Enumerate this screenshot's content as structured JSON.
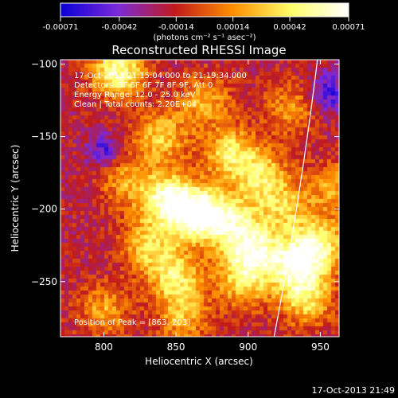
{
  "chart_data": {
    "type": "heatmap",
    "title": "Reconstructed RHESSI Image",
    "xlabel": "Heliocentric X (arcsec)",
    "ylabel": "Heliocentric Y (arcsec)",
    "xlim": [
      770,
      963
    ],
    "ylim": [
      -288,
      -97
    ],
    "x_ticks": [
      800,
      850,
      900,
      950
    ],
    "y_ticks": [
      -250,
      -200,
      -150,
      -100
    ],
    "x_tick_labels": [
      "800",
      "850",
      "900",
      "950"
    ],
    "y_tick_labels": [
      "-250",
      "-200",
      "-150",
      "-100"
    ],
    "colorbar": {
      "range": [
        -0.00071,
        0.00071
      ],
      "ticks": [
        -0.00071,
        -0.00042,
        -0.00014,
        0.00014,
        0.00042,
        0.00071
      ],
      "tick_labels": [
        "-0.00071",
        "-0.00042",
        "-0.00014",
        "0.00014",
        "0.00042",
        "0.00071"
      ],
      "units": "(photons cm⁻² s⁻¹ asec⁻²)",
      "colormap": "rainbow-to-hot",
      "colors": [
        "#0a00d8",
        "#7c2ad8",
        "#c21a1a",
        "#ff9000",
        "#ffff6a",
        "#ffffff"
      ]
    },
    "annotations": [
      "17-Oct-2013 21:15:04.000 to 21:19:34.000",
      "Detectors: 3F 5F 6F 7F 8F 9F, Att 0",
      "Energy Range: 12.0 - 25.0 keV",
      "Clean | Total counts: 2.20E+04"
    ],
    "peak_label": "Position of Peak = [863,-203]",
    "peak": {
      "x": 863,
      "y": -203
    },
    "sources": [
      {
        "x": 863,
        "y": -203,
        "v": 0.00071
      },
      {
        "x": 843,
        "y": -193,
        "v": 0.0005
      },
      {
        "x": 886,
        "y": -208,
        "v": 0.00045
      },
      {
        "x": 903,
        "y": -228,
        "v": 0.00052
      },
      {
        "x": 933,
        "y": -238,
        "v": 0.00055
      },
      {
        "x": 950,
        "y": -225,
        "v": 0.00042
      },
      {
        "x": 940,
        "y": -262,
        "v": 0.00035
      },
      {
        "x": 850,
        "y": -247,
        "v": 0.0004
      },
      {
        "x": 888,
        "y": -162,
        "v": 0.0004
      },
      {
        "x": 910,
        "y": -178,
        "v": 0.00032
      },
      {
        "x": 810,
        "y": -105,
        "v": 0.00055
      },
      {
        "x": 840,
        "y": -150,
        "v": 0.0003
      },
      {
        "x": 830,
        "y": -225,
        "v": 0.0003
      },
      {
        "x": 855,
        "y": -275,
        "v": 0.00022
      },
      {
        "x": 800,
        "y": -270,
        "v": 0.0002
      },
      {
        "x": 925,
        "y": -200,
        "v": 0.00026
      },
      {
        "x": 870,
        "y": -125,
        "v": 0.00022
      },
      {
        "x": 960,
        "y": -185,
        "v": 0.0002
      },
      {
        "x": 930,
        "y": -130,
        "v": 0.00016
      },
      {
        "x": 897,
        "y": -250,
        "v": 0.00032
      },
      {
        "x": 815,
        "y": -180,
        "v": 0.00018
      }
    ],
    "limb_x_at_top": 948,
    "limb_x_at_bottom": 918
  },
  "footer": {
    "date_label": "17-Oct-2013 21:49"
  }
}
